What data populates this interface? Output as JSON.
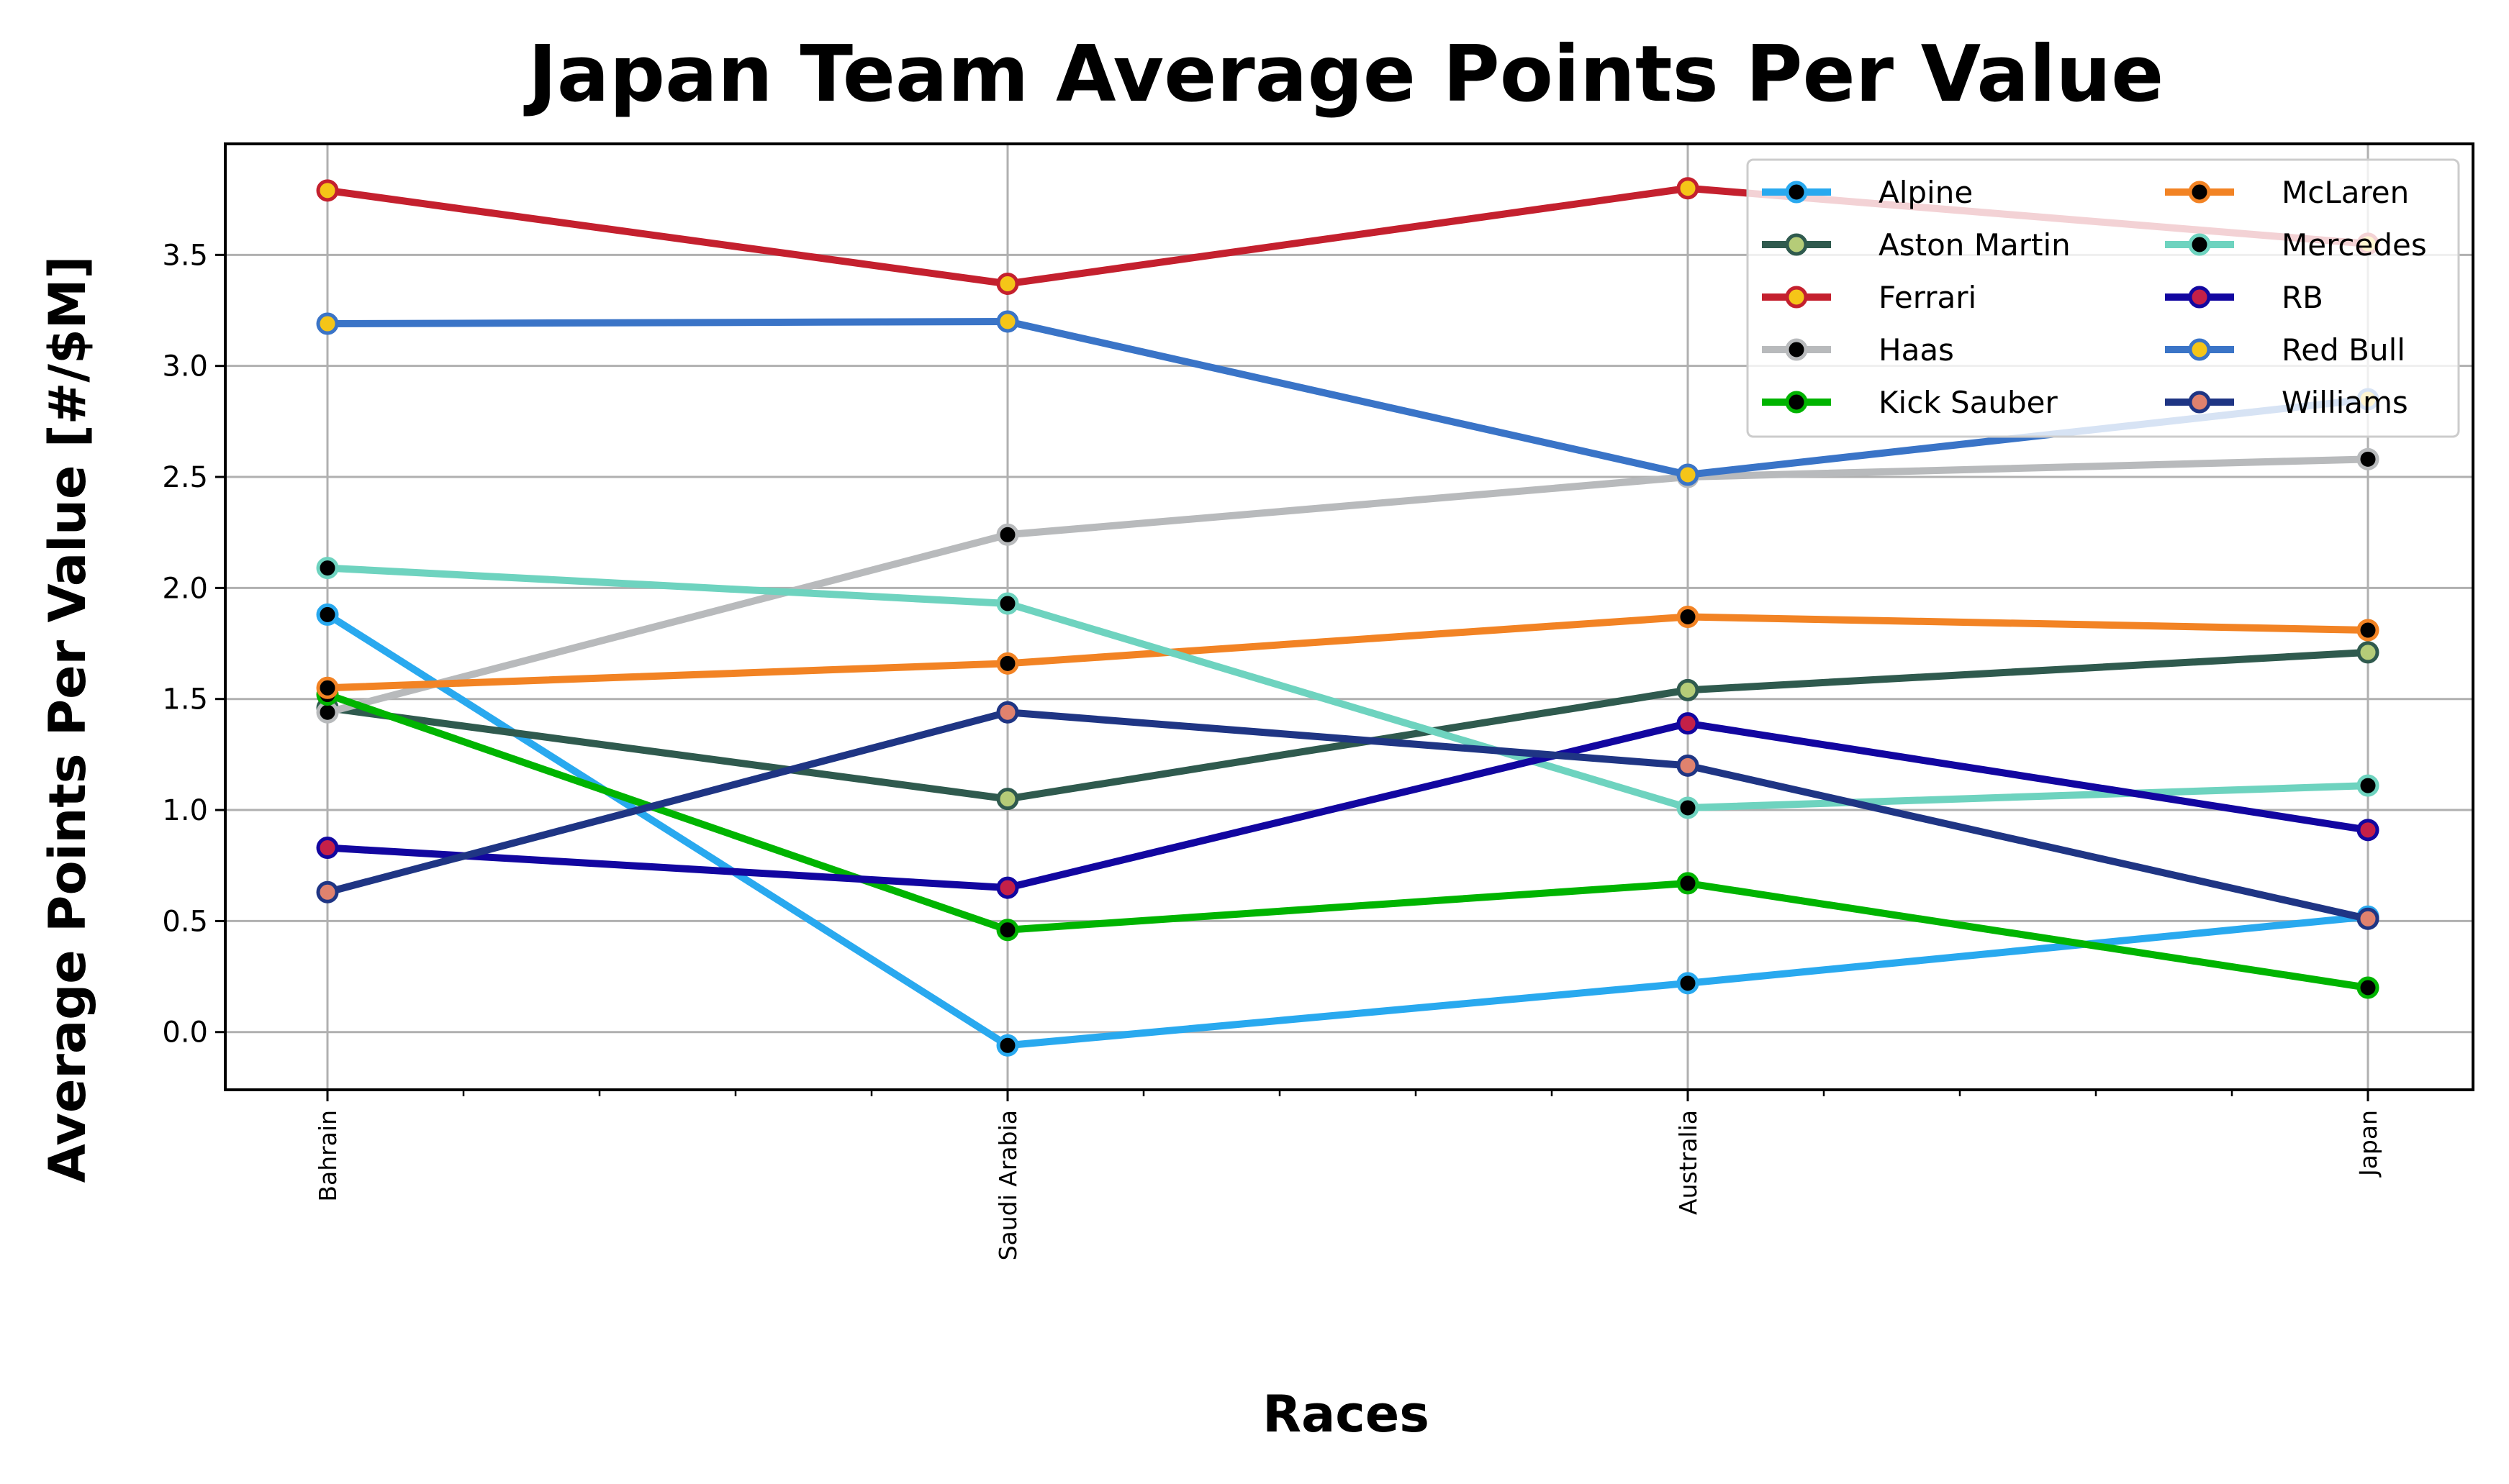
{
  "chart_data": {
    "type": "line",
    "title": "Japan Team Average Points Per Value",
    "xlabel": "Races",
    "ylabel": "Average Points Per Value [#/$M]",
    "categories": [
      "Bahrain",
      "Saudi Arabia",
      "Australia",
      "Japan"
    ],
    "ylim": [
      -0.26,
      4.0
    ],
    "yticks": [
      "0.0",
      "0.5",
      "1.0",
      "1.5",
      "2.0",
      "2.5",
      "3.0",
      "3.5"
    ],
    "grid": true,
    "legend_position": "top-right",
    "series": [
      {
        "name": "Alpine",
        "values": [
          1.88,
          -0.06,
          0.22,
          0.52
        ],
        "color": "#29a9ef",
        "marker": "#000000"
      },
      {
        "name": "Aston Martin",
        "values": [
          1.46,
          1.05,
          1.54,
          1.71
        ],
        "color": "#2f5a4e",
        "marker": "#b5cc78"
      },
      {
        "name": "Ferrari",
        "values": [
          3.79,
          3.37,
          3.8,
          3.55
        ],
        "color": "#c4202e",
        "marker": "#f5c518"
      },
      {
        "name": "Haas",
        "values": [
          1.44,
          2.24,
          2.5,
          2.58
        ],
        "color": "#b8babc",
        "marker": "#000000"
      },
      {
        "name": "Kick Sauber",
        "values": [
          1.52,
          0.46,
          0.67,
          0.2
        ],
        "color": "#00b400",
        "marker": "#000000"
      },
      {
        "name": "McLaren",
        "values": [
          1.55,
          1.66,
          1.87,
          1.81
        ],
        "color": "#f28324",
        "marker": "#000000"
      },
      {
        "name": "Mercedes",
        "values": [
          2.09,
          1.93,
          1.01,
          1.11
        ],
        "color": "#6ed3bf",
        "marker": "#000000"
      },
      {
        "name": "RB",
        "values": [
          0.83,
          0.65,
          1.39,
          0.91
        ],
        "color": "#1206a0",
        "marker": "#c42048"
      },
      {
        "name": "Red Bull",
        "values": [
          3.19,
          3.2,
          2.51,
          2.85
        ],
        "color": "#3a74c7",
        "marker": "#f5c518"
      },
      {
        "name": "Williams",
        "values": [
          0.63,
          1.44,
          1.2,
          0.51
        ],
        "color": "#1f3584",
        "marker": "#e0826e"
      }
    ]
  }
}
